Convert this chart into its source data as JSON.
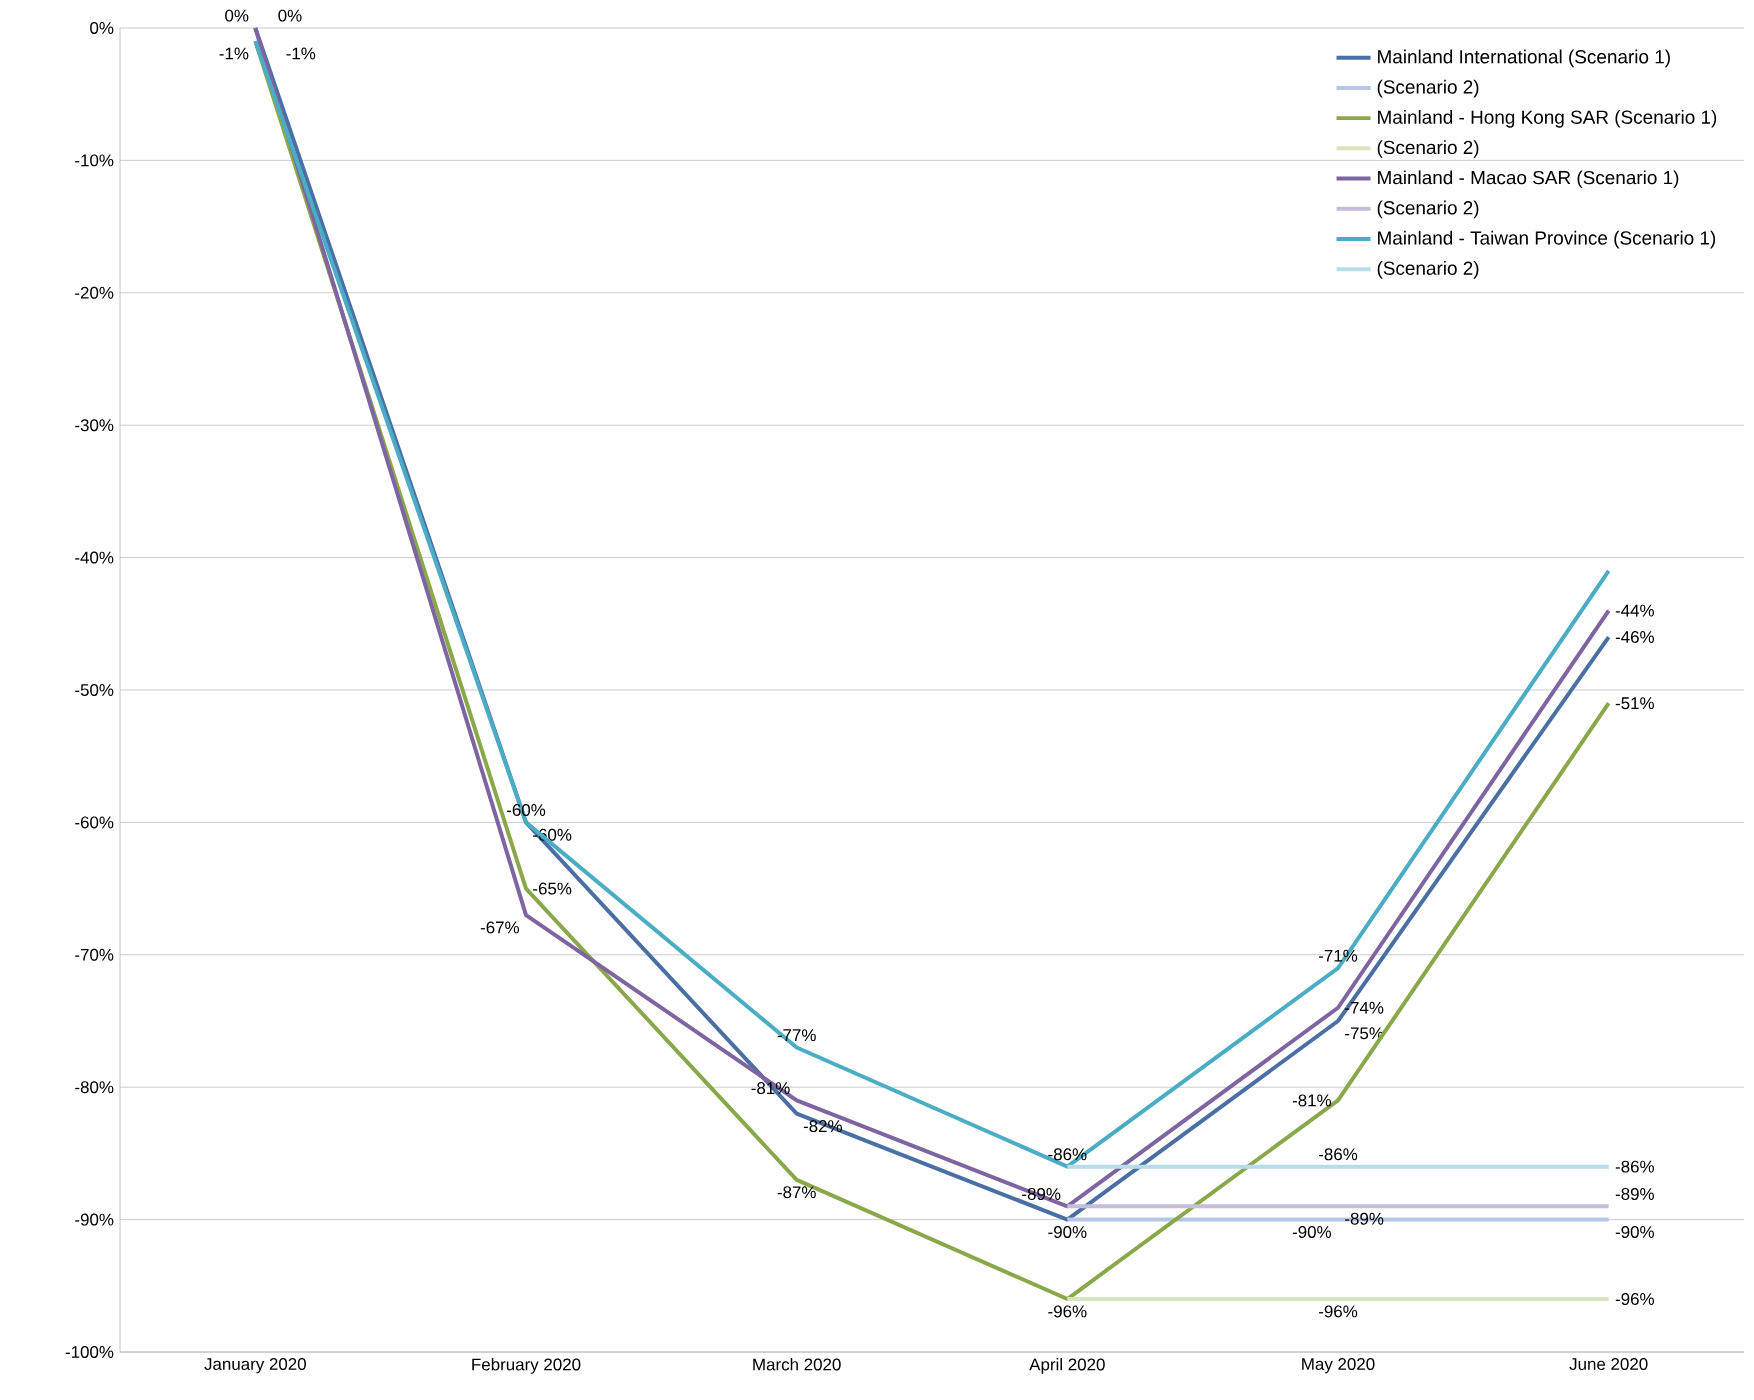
{
  "chart_data": {
    "type": "line",
    "categories": [
      "January 2020",
      "February 2020",
      "March 2020",
      "April 2020",
      "May 2020",
      "June 2020"
    ],
    "series": [
      {
        "name": "Mainland International (Scenario 1)",
        "color": "#4a6fa5",
        "values": [
          0,
          -60,
          -82,
          -90,
          -75,
          -46
        ],
        "value_labels": [
          "0%",
          "-60%",
          "-82%",
          "-90%",
          "-75%",
          "-46%"
        ]
      },
      {
        "name": "(Scenario 2)",
        "color": "#b4c7e7",
        "values": [
          null,
          null,
          null,
          -90,
          -90,
          -90
        ],
        "value_labels": [
          null,
          null,
          null,
          null,
          "-90%",
          "-90%"
        ]
      },
      {
        "name": "Mainland - Hong Kong SAR (Scenario 1)",
        "color": "#8aa84a",
        "values": [
          -1,
          -65,
          -87,
          -96,
          -81,
          -51
        ],
        "value_labels": [
          "-1%",
          "-65%",
          "-87%",
          "-96%",
          "-81%",
          "-51%"
        ]
      },
      {
        "name": "(Scenario 2)",
        "color": "#d7e4bd",
        "values": [
          null,
          null,
          null,
          -96,
          -96,
          -96
        ],
        "value_labels": [
          null,
          null,
          null,
          null,
          "-96%",
          "-96%"
        ]
      },
      {
        "name": "Mainland - Macao SAR (Scenario 1)",
        "color": "#7e64a0",
        "values": [
          0,
          -67,
          -81,
          -89,
          -74,
          -44
        ],
        "value_labels": [
          "0%",
          "-67%",
          "-81%",
          "-89%",
          "-74%",
          "-44%"
        ]
      },
      {
        "name": "(Scenario 2)",
        "color": "#c6bddb",
        "values": [
          null,
          null,
          null,
          -89,
          -89,
          -89
        ],
        "value_labels": [
          null,
          null,
          null,
          null,
          "-89%",
          "-89%"
        ]
      },
      {
        "name": "Mainland - Taiwan Province (Scenario 1)",
        "color": "#4bacc6",
        "values": [
          -1,
          -60,
          -77,
          -86,
          -71,
          -41
        ],
        "value_labels": [
          "-1%",
          "-60%",
          "-77%",
          "-86%",
          "-71%",
          null
        ]
      },
      {
        "name": "(Scenario 2)",
        "color": "#b7dee8",
        "values": [
          null,
          null,
          null,
          -86,
          -86,
          -86
        ],
        "value_labels": [
          null,
          null,
          null,
          null,
          "-86%",
          "-86%"
        ]
      }
    ],
    "ylim": [
      -100,
      0
    ],
    "yticks": [
      {
        "value": 0,
        "label": "0%"
      },
      {
        "value": -10,
        "label": "-10%"
      },
      {
        "value": -20,
        "label": "-20%"
      },
      {
        "value": -30,
        "label": "-30%"
      },
      {
        "value": -40,
        "label": "-40%"
      },
      {
        "value": -50,
        "label": "-50%"
      },
      {
        "value": -60,
        "label": "-60%"
      },
      {
        "value": -70,
        "label": "-70%"
      },
      {
        "value": -80,
        "label": "-80%"
      },
      {
        "value": -90,
        "label": "-90%"
      },
      {
        "value": -100,
        "label": "-100%"
      }
    ],
    "grid": "y",
    "legend": "top right",
    "marker": "none",
    "line_style": "solid"
  }
}
